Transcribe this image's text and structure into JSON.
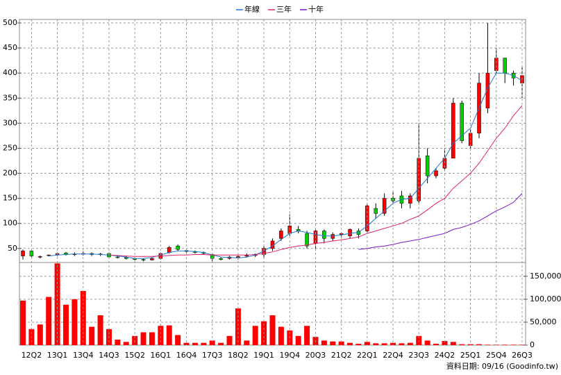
{
  "chart_data": [
    {
      "type": "candlestick",
      "legend_position": "top",
      "grid": true,
      "up_color": "#ff0000",
      "down_color": "#00cc00",
      "ylim": [
        22,
        507
      ],
      "yticks": [
        50,
        100,
        150,
        200,
        250,
        300,
        350,
        400,
        450,
        500
      ],
      "open": [
        35,
        45,
        33,
        36,
        38,
        41,
        38,
        39,
        40,
        38,
        40,
        33,
        32,
        30,
        28,
        27,
        30,
        42,
        55,
        46,
        44,
        42,
        38,
        30,
        30,
        32,
        35,
        36,
        38,
        50,
        70,
        80,
        88,
        80,
        60,
        85,
        70,
        78,
        75,
        85,
        85,
        130,
        120,
        150,
        155,
        140,
        145,
        235,
        195,
        210,
        230,
        340,
        255,
        280,
        330,
        405,
        430,
        400,
        380
      ],
      "high": [
        48,
        48,
        36,
        38,
        42,
        43,
        42,
        44,
        42,
        41,
        42,
        36,
        35,
        32,
        30,
        32,
        42,
        55,
        58,
        48,
        46,
        44,
        40,
        33,
        35,
        36,
        40,
        40,
        55,
        70,
        90,
        118,
        95,
        85,
        90,
        88,
        82,
        82,
        90,
        90,
        140,
        140,
        160,
        165,
        165,
        160,
        300,
        250,
        210,
        250,
        350,
        345,
        290,
        400,
        500,
        450,
        430,
        405,
        415
      ],
      "low": [
        28,
        32,
        30,
        34,
        35,
        36,
        35,
        36,
        35,
        35,
        30,
        30,
        28,
        26,
        24,
        26,
        28,
        40,
        45,
        42,
        40,
        38,
        25,
        26,
        28,
        28,
        32,
        33,
        30,
        45,
        65,
        75,
        80,
        50,
        50,
        60,
        65,
        70,
        70,
        70,
        80,
        110,
        115,
        140,
        130,
        130,
        140,
        180,
        190,
        205,
        230,
        260,
        250,
        270,
        320,
        400,
        380,
        375,
        350
      ],
      "close": [
        45,
        35,
        34,
        37,
        40,
        38,
        39,
        40,
        38,
        39,
        33,
        32,
        30,
        28,
        27,
        30,
        40,
        52,
        48,
        44,
        42,
        40,
        30,
        28,
        33,
        34,
        36,
        38,
        50,
        65,
        85,
        95,
        85,
        55,
        85,
        70,
        78,
        80,
        88,
        78,
        135,
        120,
        150,
        145,
        140,
        155,
        230,
        195,
        205,
        230,
        340,
        265,
        280,
        380,
        400,
        430,
        400,
        390,
        395
      ],
      "series": [
        {
          "name": "年線",
          "color": "#1f77d0",
          "values": [
            null,
            null,
            null,
            35,
            37,
            38,
            39,
            39,
            39,
            38,
            37,
            35,
            33,
            30,
            30,
            32,
            37,
            42,
            45,
            45,
            44,
            42,
            37,
            33,
            32,
            31,
            33,
            37,
            45,
            55,
            68,
            80,
            85,
            82,
            78,
            75,
            75,
            77,
            80,
            82,
            95,
            110,
            125,
            140,
            148,
            150,
            170,
            190,
            210,
            230,
            260,
            275,
            290,
            330,
            370,
            400,
            400,
            395,
            385
          ]
        },
        {
          "name": "三年",
          "color": "#e0206a",
          "values": [
            null,
            null,
            null,
            null,
            null,
            null,
            null,
            null,
            null,
            null,
            37,
            36,
            35,
            34,
            34,
            34,
            35,
            36,
            37,
            37,
            38,
            38,
            37,
            37,
            37,
            37,
            37,
            38,
            40,
            43,
            48,
            52,
            55,
            57,
            60,
            62,
            65,
            67,
            70,
            73,
            80,
            85,
            90,
            95,
            100,
            108,
            115,
            127,
            140,
            150,
            170,
            185,
            200,
            220,
            245,
            270,
            290,
            315,
            335
          ]
        },
        {
          "name": "十年",
          "color": "#7a18c8",
          "values": [
            null,
            null,
            null,
            null,
            null,
            null,
            null,
            null,
            null,
            null,
            null,
            null,
            null,
            null,
            null,
            null,
            null,
            null,
            null,
            null,
            null,
            null,
            null,
            null,
            null,
            null,
            null,
            null,
            null,
            null,
            null,
            null,
            null,
            null,
            null,
            null,
            null,
            null,
            null,
            48,
            50,
            53,
            55,
            58,
            62,
            65,
            68,
            72,
            76,
            80,
            88,
            92,
            98,
            105,
            115,
            125,
            133,
            142,
            160
          ]
        }
      ]
    },
    {
      "type": "bar",
      "grid": true,
      "color": "#ff0000",
      "categories": [
        null,
        "12Q2",
        null,
        null,
        "13Q1",
        null,
        null,
        "13Q4",
        null,
        null,
        "14Q3",
        null,
        null,
        "15Q2",
        null,
        null,
        "16Q1",
        null,
        null,
        "16Q4",
        null,
        null,
        "17Q3",
        null,
        null,
        "18Q2",
        null,
        null,
        "19Q1",
        null,
        null,
        "19Q4",
        null,
        null,
        "20Q3",
        null,
        null,
        "21Q2",
        null,
        null,
        "22Q1",
        null,
        null,
        "22Q4",
        null,
        null,
        "23Q3",
        null,
        null,
        "24Q2",
        null,
        null,
        "25Q1",
        null,
        null,
        "25Q4",
        null,
        null,
        "26Q3"
      ],
      "values": [
        97000,
        35000,
        45000,
        105000,
        178000,
        88000,
        100000,
        118000,
        40000,
        65000,
        35000,
        12000,
        7000,
        20000,
        28000,
        28000,
        42000,
        43000,
        22000,
        5000,
        5000,
        5000,
        10000,
        5000,
        20000,
        80000,
        10000,
        42000,
        52000,
        65000,
        40000,
        32000,
        20000,
        42000,
        18000,
        10000,
        8000,
        8000,
        5000,
        3000,
        7000,
        4000,
        4000,
        5000,
        4000,
        5000,
        20000,
        10000,
        3000,
        9000,
        7000,
        2000,
        2000,
        2000,
        1000,
        1000,
        1000,
        1000,
        1000
      ],
      "ylim": [
        0,
        180000
      ],
      "yticks": [
        0,
        {
          "value": 50000,
          "label": "50,000"
        },
        {
          "value": 100000,
          "label": "100,000"
        },
        {
          "value": 150000,
          "label": "150,000"
        }
      ],
      "footnote": "資料日期: 09/16 (Goodinfo.tw)"
    }
  ]
}
